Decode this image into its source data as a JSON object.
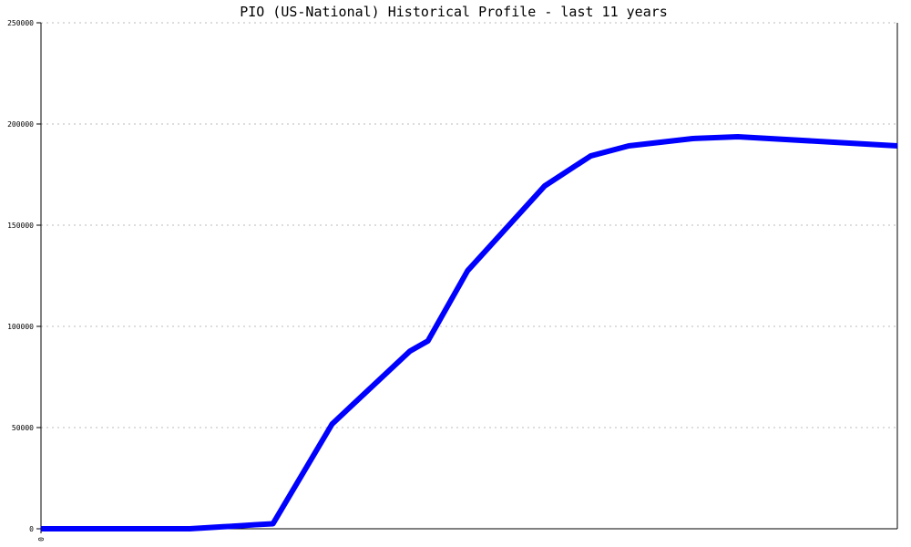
{
  "chart_data": {
    "type": "line",
    "title": "PIO (US-National) Historical Profile - last 11 years",
    "xlabel": "",
    "ylabel": "",
    "xlim": [
      0,
      11
    ],
    "ylim": [
      0,
      250000
    ],
    "x_tick_labels": [
      "0"
    ],
    "y_ticks": [
      0,
      50000,
      100000,
      150000,
      200000,
      250000
    ],
    "y_tick_labels": [
      "0",
      "50000",
      "100000",
      "150000",
      "200000",
      "250000"
    ],
    "grid": "horizontal dotted",
    "series": [
      {
        "color": "#0000ff",
        "x": [
          0,
          1.91,
          2.34,
          2.57,
          2.75,
          2.98,
          3.74,
          4.74,
          4.97,
          5.48,
          6.47,
          7.06,
          7.55,
          8.37,
          8.95,
          11
        ],
        "y": [
          0,
          0,
          1000,
          1500,
          2000,
          2500,
          51800,
          87800,
          92800,
          127500,
          169400,
          184200,
          189200,
          192800,
          193700,
          189200
        ]
      }
    ]
  }
}
